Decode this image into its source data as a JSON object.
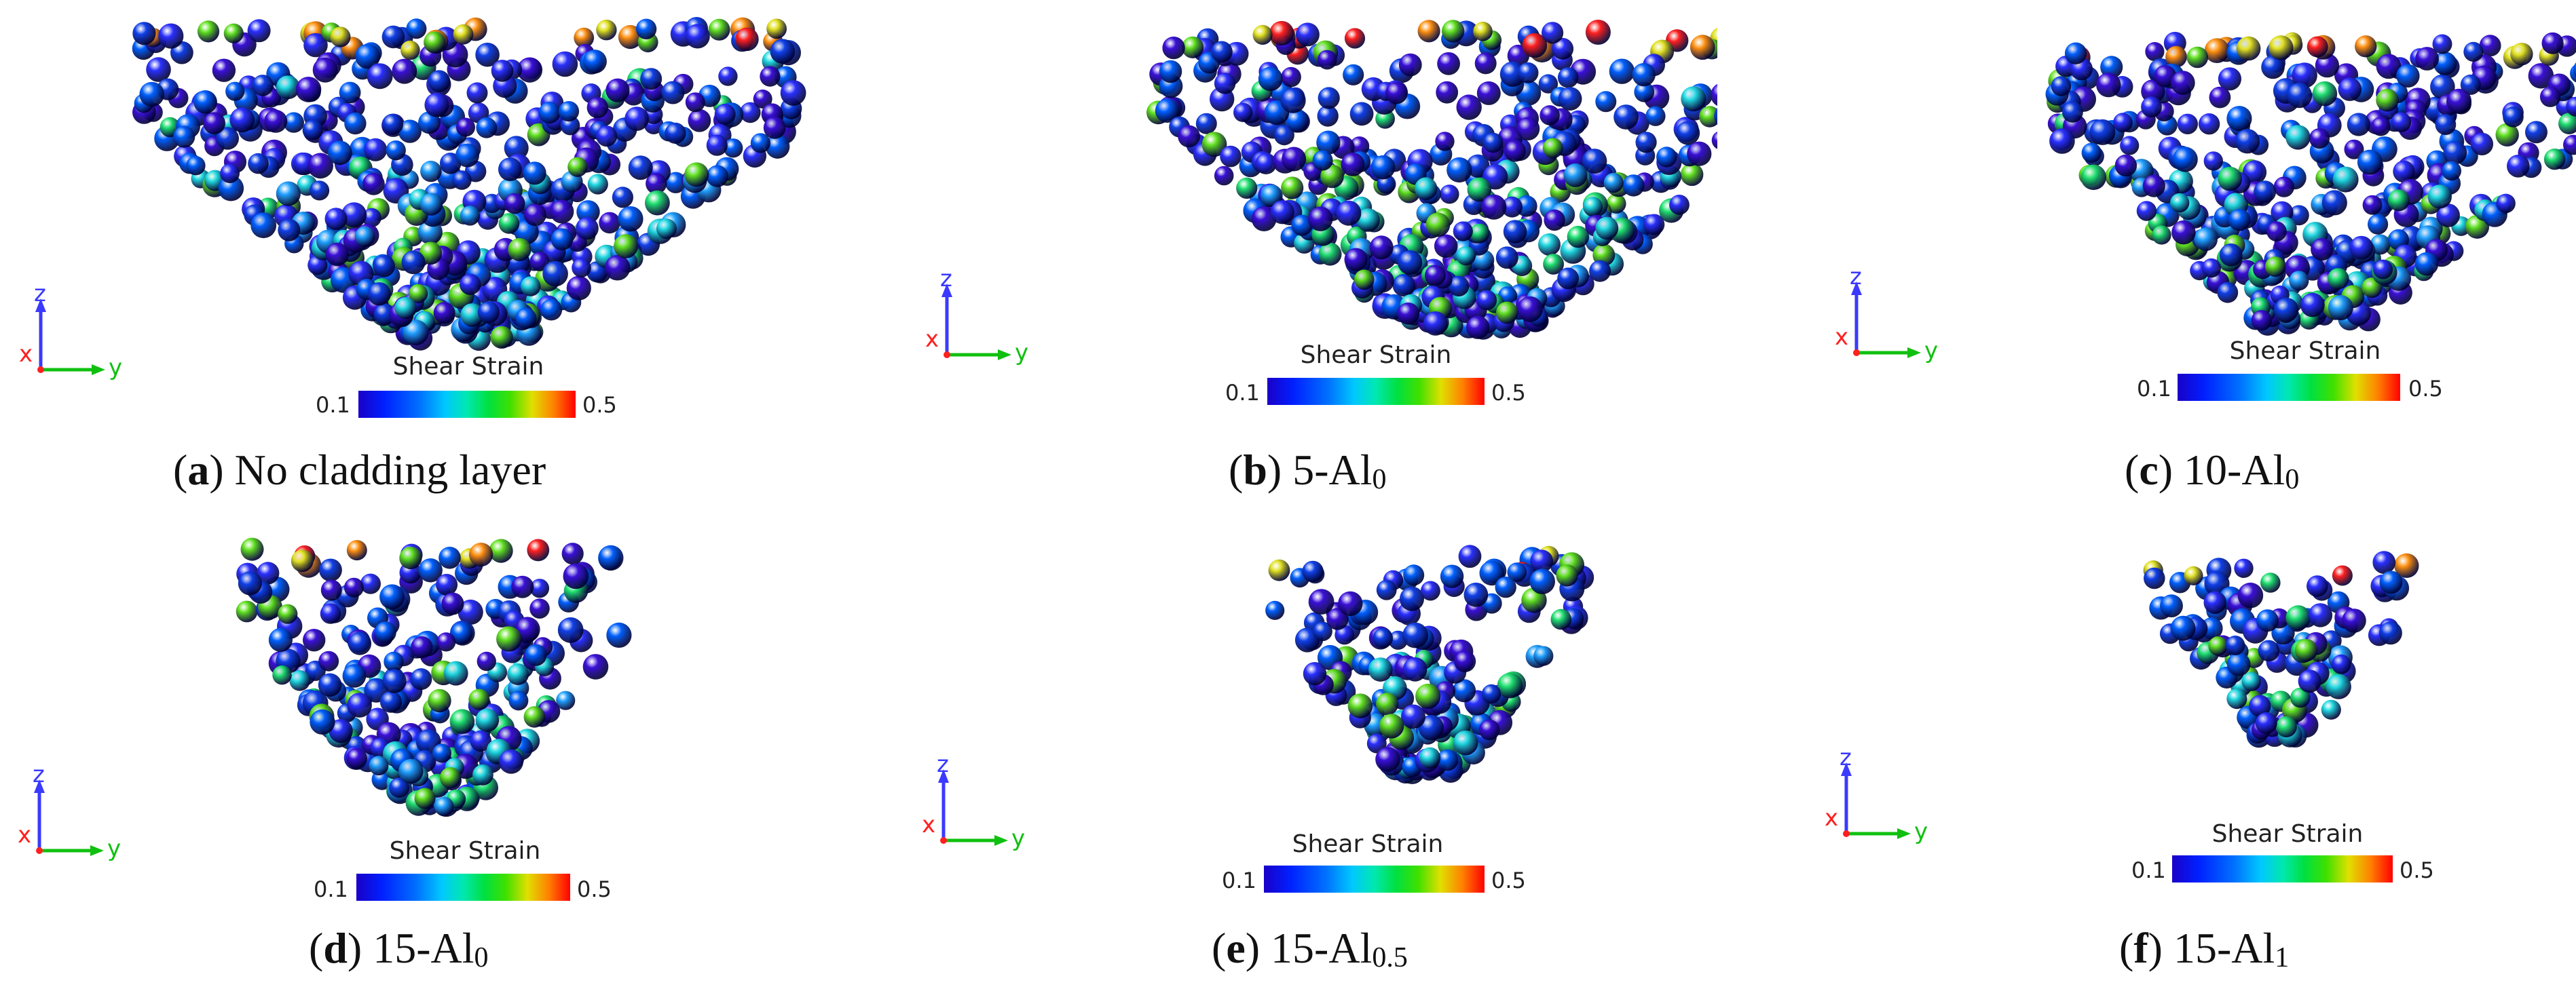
{
  "colors": {
    "z_axis": "#3a3aff",
    "x_axis": "#ff2020",
    "y_axis": "#10c010"
  },
  "colorbar": {
    "title": "Shear Strain",
    "min_label": "0.1",
    "max_label": "0.5"
  },
  "axes_labels": {
    "z": "z",
    "x": "x",
    "y": "y"
  },
  "panels": [
    {
      "letter": "a",
      "open": "(",
      "close": ")",
      "name": "No cladding layer",
      "sub": ""
    },
    {
      "letter": "b",
      "open": "(",
      "close": ")",
      "name": "5-Al",
      "sub": "0"
    },
    {
      "letter": "c",
      "open": "(",
      "close": ")",
      "name": "10-Al",
      "sub": "0"
    },
    {
      "letter": "d",
      "open": "(",
      "close": ")",
      "name": "15-Al",
      "sub": "0"
    },
    {
      "letter": "e",
      "open": "(",
      "close": ")",
      "name": "15-Al",
      "sub": "0.5"
    },
    {
      "letter": "f",
      "open": "(",
      "close": ")",
      "name": "15-Al",
      "sub": "1"
    }
  ]
}
